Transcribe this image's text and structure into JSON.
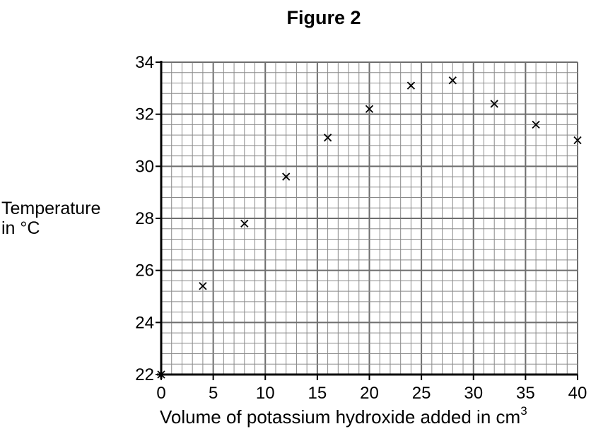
{
  "chart_data": {
    "type": "scatter",
    "title": "Figure 2",
    "ylabel_line1": "Temperature",
    "ylabel_line2": "in °C",
    "xlabel": "Volume of potassium hydroxide added in cm",
    "xlabel_sup": "3",
    "xlim": [
      0,
      40
    ],
    "ylim": [
      22,
      34
    ],
    "x_ticks": [
      0,
      5,
      10,
      15,
      20,
      25,
      30,
      35,
      40
    ],
    "y_ticks": [
      22,
      24,
      26,
      28,
      30,
      32,
      34
    ],
    "grid": true,
    "marker": "x",
    "points": [
      {
        "x": 0,
        "y": 22.0
      },
      {
        "x": 4,
        "y": 25.4
      },
      {
        "x": 8,
        "y": 27.8
      },
      {
        "x": 12,
        "y": 29.6
      },
      {
        "x": 16,
        "y": 31.1
      },
      {
        "x": 20,
        "y": 32.2
      },
      {
        "x": 24,
        "y": 33.1
      },
      {
        "x": 28,
        "y": 33.3
      },
      {
        "x": 32,
        "y": 32.4
      },
      {
        "x": 36,
        "y": 31.6
      },
      {
        "x": 40,
        "y": 31.0
      }
    ]
  }
}
